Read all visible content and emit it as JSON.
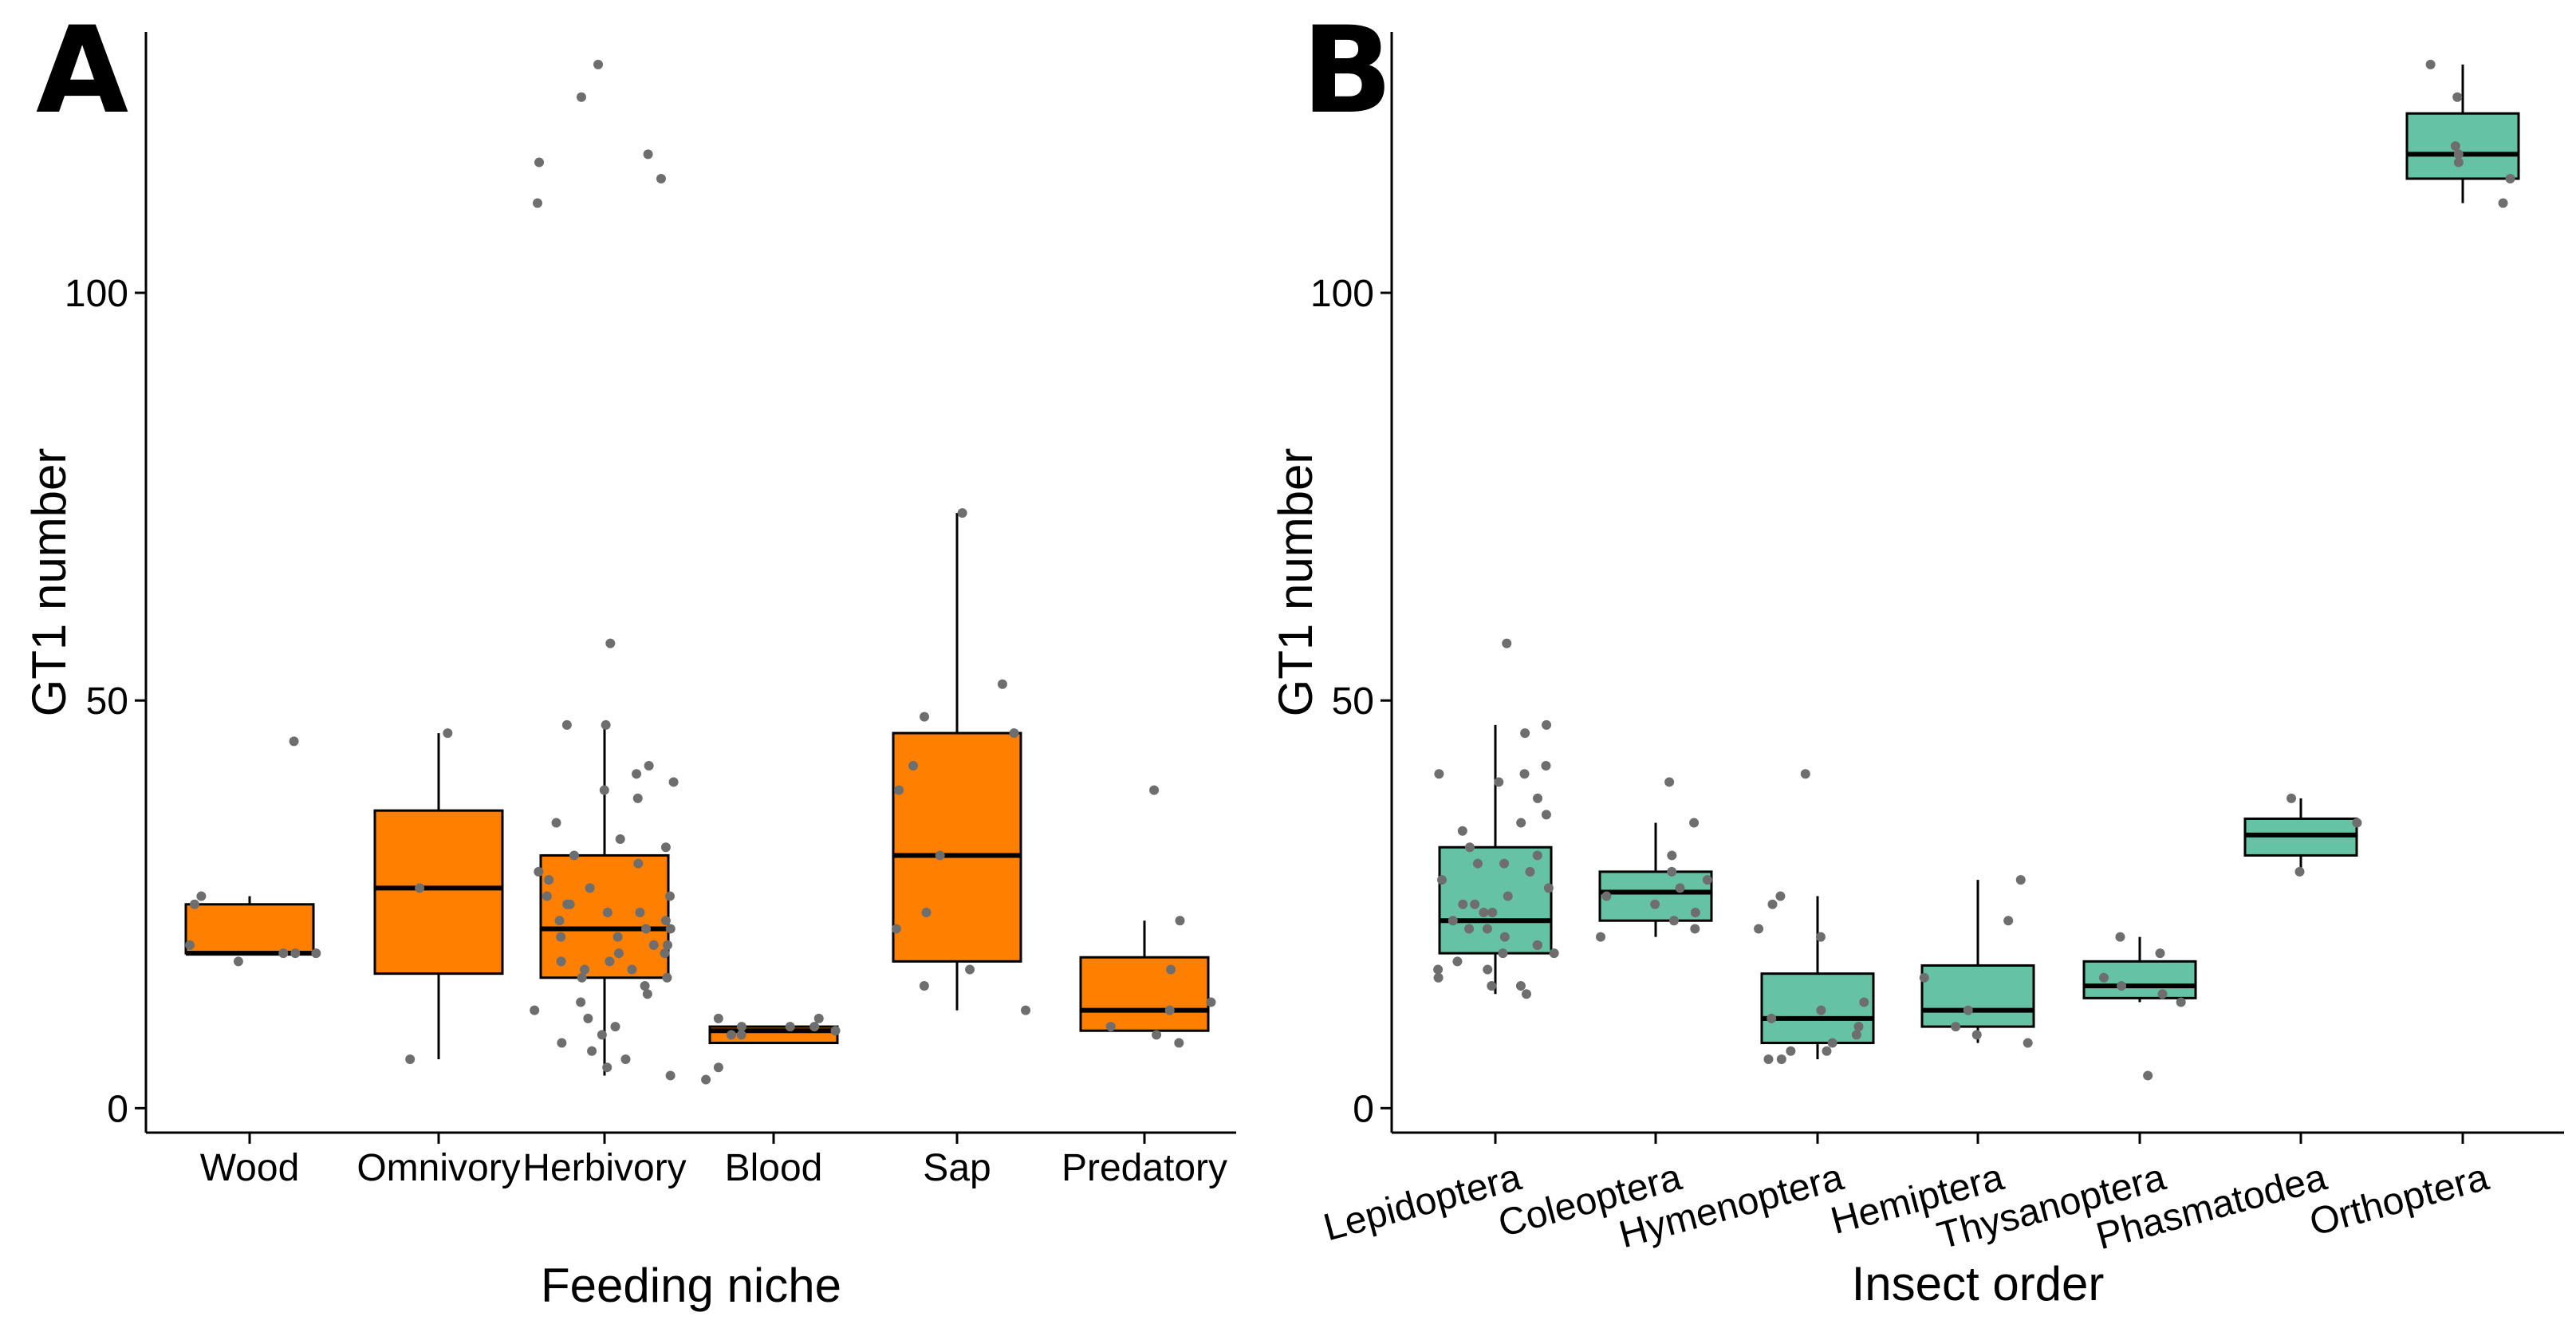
{
  "colors": {
    "panel_a_fill": "#ff7f00",
    "panel_b_fill": "#66c2a5",
    "point": "#6e6e6e"
  },
  "chart_data": [
    {
      "type": "box",
      "panel_label": "A",
      "xlabel": "Feeding niche",
      "ylabel": "GT1 number",
      "ylim": [
        -3,
        132
      ],
      "yticks": [
        0,
        50,
        100
      ],
      "ytick_labels": [
        "0",
        "50",
        "100"
      ],
      "categories": [
        "Wood",
        "Omnivory",
        "Herbivory",
        "Blood",
        "Sap",
        "Predatory"
      ],
      "boxes": [
        {
          "category": "Wood",
          "whisker_low": 19,
          "q1": 19,
          "median": 19,
          "q3": 25,
          "whisker_high": 26
        },
        {
          "category": "Omnivory",
          "whisker_low": 6,
          "q1": 16.5,
          "median": 27,
          "q3": 36.5,
          "whisker_high": 46
        },
        {
          "category": "Herbivory",
          "whisker_low": 4,
          "q1": 16,
          "median": 22,
          "q3": 31,
          "whisker_high": 47
        },
        {
          "category": "Blood",
          "whisker_low": 8,
          "q1": 8,
          "median": 9.5,
          "q3": 10,
          "whisker_high": 10
        },
        {
          "category": "Sap",
          "whisker_low": 12,
          "q1": 18,
          "median": 31,
          "q3": 46,
          "whisker_high": 73
        },
        {
          "category": "Predatory",
          "whisker_low": 9.5,
          "q1": 9.5,
          "median": 12,
          "q3": 18.5,
          "whisker_high": 23
        }
      ],
      "points": [
        [
          19,
          20,
          18,
          19,
          26,
          45,
          25,
          19
        ],
        [
          46,
          27,
          6
        ],
        [
          128,
          124,
          114,
          116,
          117,
          111,
          57,
          47,
          47,
          42,
          41,
          40,
          39,
          38,
          35,
          33,
          32,
          31,
          30,
          29,
          28,
          27,
          26,
          26,
          25,
          25,
          24,
          24,
          23,
          23,
          22,
          22,
          21,
          21,
          20,
          20,
          19,
          19,
          18,
          18,
          17,
          17,
          16,
          16,
          15,
          14,
          13,
          12,
          11,
          10,
          9,
          8,
          7,
          6,
          5,
          4
        ],
        [
          10,
          9.5,
          10,
          11,
          9,
          11,
          10,
          3.5,
          5,
          9
        ],
        [
          52,
          73,
          46,
          48,
          42,
          39,
          31,
          22,
          17,
          15,
          12,
          24
        ],
        [
          23,
          39,
          17,
          13,
          12,
          10,
          8,
          9
        ]
      ]
    },
    {
      "type": "box",
      "panel_label": "B",
      "xlabel": "Insect order",
      "ylabel": "GT1 number",
      "ylim": [
        -3,
        132
      ],
      "yticks": [
        0,
        50,
        100
      ],
      "ytick_labels": [
        "0",
        "50",
        "100"
      ],
      "categories": [
        "Lepidoptera",
        "Coleoptera",
        "Hymenoptera",
        "Hemiptera",
        "Thysanoptera",
        "Phasmatodea",
        "Orthoptera"
      ],
      "boxes": [
        {
          "category": "Lepidoptera",
          "whisker_low": 14,
          "q1": 19,
          "median": 23,
          "q3": 32,
          "whisker_high": 47
        },
        {
          "category": "Coleoptera",
          "whisker_low": 21,
          "q1": 23,
          "median": 26.5,
          "q3": 29,
          "whisker_high": 35
        },
        {
          "category": "Hymenoptera",
          "whisker_low": 6,
          "q1": 8,
          "median": 11,
          "q3": 16.5,
          "whisker_high": 26
        },
        {
          "category": "Hemiptera",
          "whisker_low": 8,
          "q1": 10,
          "median": 12,
          "q3": 17.5,
          "whisker_high": 28
        },
        {
          "category": "Thysanoptera",
          "whisker_low": 13,
          "q1": 13.5,
          "median": 15,
          "q3": 18,
          "whisker_high": 21
        },
        {
          "category": "Phasmatodea",
          "whisker_low": 29,
          "q1": 31,
          "median": 33.5,
          "q3": 35.5,
          "whisker_high": 38
        },
        {
          "category": "Orthoptera",
          "whisker_low": 111,
          "q1": 114,
          "median": 117,
          "q3": 122,
          "whisker_high": 128
        }
      ],
      "points": [
        [
          57,
          47,
          46,
          41,
          40,
          38,
          36,
          34,
          32,
          31,
          30,
          29,
          28,
          27,
          26,
          25,
          24,
          24,
          23,
          22,
          21,
          20,
          20,
          19,
          18,
          17,
          16,
          15,
          15,
          14,
          42,
          41,
          35,
          30,
          25,
          22,
          19,
          17
        ],
        [
          40,
          35,
          31,
          29,
          28,
          27,
          26,
          25,
          24,
          23,
          22,
          21
        ],
        [
          41,
          26,
          25,
          22,
          21,
          13,
          12,
          11,
          10,
          9,
          8,
          7,
          6,
          6,
          7
        ],
        [
          28,
          23,
          16,
          12,
          10,
          9,
          8
        ],
        [
          21,
          19,
          16,
          15,
          14,
          13,
          4
        ],
        [
          38,
          35,
          29
        ],
        [
          128,
          124,
          118,
          117,
          116,
          114,
          111
        ]
      ]
    }
  ]
}
